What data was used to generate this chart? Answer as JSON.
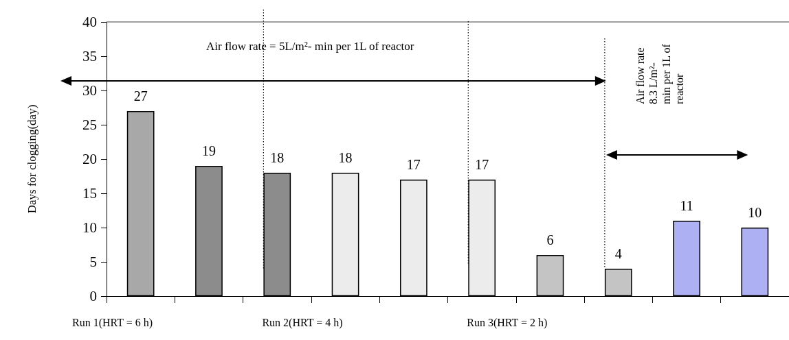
{
  "chart_data": {
    "type": "bar",
    "ylabel": "Days for clogging(day)",
    "categories": [
      null,
      null,
      null,
      null,
      null,
      null,
      null,
      null,
      null,
      null
    ],
    "values": [
      27,
      19,
      18,
      18,
      17,
      17,
      6,
      4,
      11,
      10
    ],
    "colors": [
      "#a8a8a8",
      "#8c8c8c",
      "#8c8c8c",
      "#ececec",
      "#ececec",
      "#ececec",
      "#c4c4c4",
      "#c4c4c4",
      "#aeb0f4",
      "#aeb0f4"
    ],
    "ylim": [
      0,
      40
    ],
    "yticks": [
      0,
      5,
      10,
      15,
      20,
      25,
      30,
      35,
      40
    ],
    "data_labels": true,
    "grid": false,
    "annotations": [
      "Air flow rate = 5L/m²- min per 1L of reactor",
      "Air flow rate 8.3 L/m²- min per 1L of reactor",
      "Run 1(HRT = 6 h)",
      "Run 2(HRT = 4 h)",
      "Run 3(HRT = 2 h)"
    ]
  }
}
